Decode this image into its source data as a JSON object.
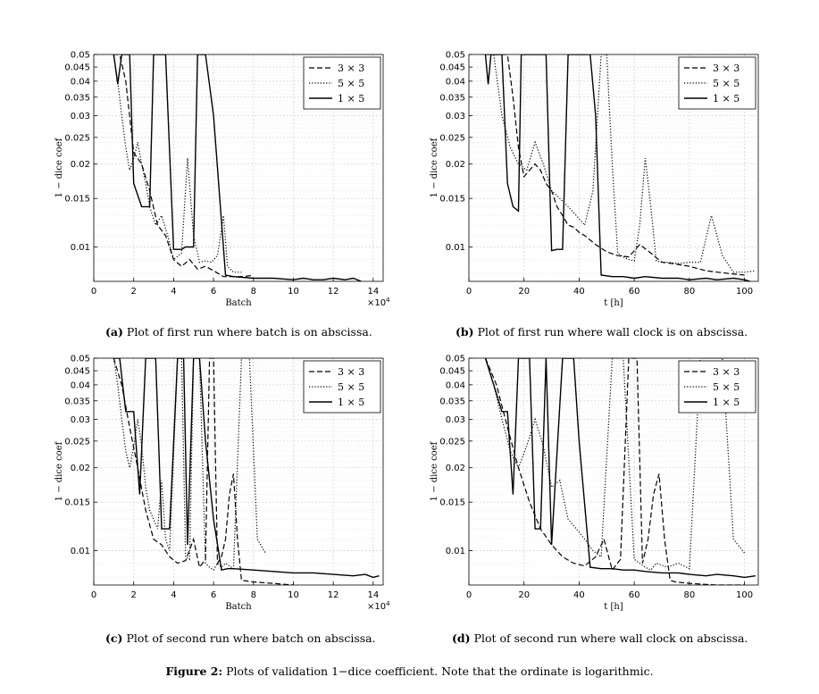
{
  "figure_caption": {
    "label": "Figure 2:",
    "text": "Plots of validation 1−dice coefficient. Note that the ordinate is logarithmic."
  },
  "panels": [
    {
      "caption_label": "(a)",
      "caption_text": "Plot of first run where batch is on abscissa."
    },
    {
      "caption_label": "(b)",
      "caption_text": "Plot of first run where wall clock is on abscissa."
    },
    {
      "caption_label": "(c)",
      "caption_text": "Plot of second run where batch on abscissa."
    },
    {
      "caption_label": "(d)",
      "caption_text": "Plot of second run where wall clock on abscissa."
    }
  ],
  "chart_data": [
    {
      "type": "line",
      "title": "",
      "xlabel": "Batch",
      "ylabel": "1 − dice coef",
      "x_multiplier_label": "×10",
      "x_multiplier_exp": "4",
      "xlim": [
        0,
        14.5
      ],
      "xticks": [
        0,
        2,
        4,
        6,
        8,
        10,
        12,
        14
      ],
      "xtick_labels": [
        "0",
        "2",
        "4",
        "6",
        "8",
        "10",
        "12",
        "14"
      ],
      "yscale": "log",
      "ylim": [
        0.0075,
        0.05
      ],
      "yticks": [
        0.01,
        0.015,
        0.02,
        0.025,
        0.03,
        0.035,
        0.04,
        0.045,
        0.05
      ],
      "ytick_labels": [
        "0.01",
        "0.015",
        "0.02",
        "0.025",
        "0.03",
        "0.035",
        "0.04",
        "0.045",
        "0.05"
      ],
      "grid": true,
      "legend_position": "top-right",
      "series": [
        {
          "name": "3 × 3",
          "style": "dashed",
          "x": [
            1.0,
            1.3,
            1.6,
            2.0,
            2.4,
            2.8,
            3.2,
            3.6,
            4.0,
            4.4,
            4.8,
            5.2,
            5.6,
            6.0,
            6.5,
            7.0,
            7.5,
            8.0
          ],
          "y": [
            0.05,
            0.05,
            0.04,
            0.022,
            0.02,
            0.016,
            0.012,
            0.011,
            0.009,
            0.0085,
            0.009,
            0.0083,
            0.0085,
            0.0082,
            0.0078,
            0.0078,
            0.0078,
            0.0079
          ]
        },
        {
          "name": "5 × 5",
          "style": "dotted",
          "x": [
            1.0,
            1.2,
            1.4,
            1.6,
            1.8,
            2.0,
            2.2,
            2.4,
            2.6,
            2.8,
            3.1,
            3.4,
            3.7,
            4.0,
            4.4,
            4.7,
            5.0,
            5.3,
            5.6,
            5.9,
            6.2,
            6.5,
            6.7,
            7.0,
            7.4
          ],
          "y": [
            0.05,
            0.04,
            0.03,
            0.023,
            0.019,
            0.021,
            0.024,
            0.02,
            0.017,
            0.014,
            0.012,
            0.013,
            0.011,
            0.009,
            0.0095,
            0.021,
            0.011,
            0.0088,
            0.0089,
            0.0088,
            0.0093,
            0.013,
            0.0085,
            0.0081,
            0.0081
          ]
        },
        {
          "name": "1 × 5",
          "style": "solid",
          "x": [
            1.0,
            1.2,
            1.4,
            1.6,
            1.8,
            2.0,
            2.4,
            2.8,
            3.0,
            3.2,
            3.6,
            4.0,
            4.4,
            4.6,
            5.0,
            5.2,
            5.6,
            6.0,
            6.6,
            7.0,
            8.0,
            9.0,
            10.0,
            10.5,
            11.0,
            11.5,
            12.0,
            12.6,
            13.0,
            13.4
          ],
          "y": [
            0.05,
            0.039,
            0.05,
            0.05,
            0.05,
            0.017,
            0.014,
            0.014,
            0.05,
            0.05,
            0.05,
            0.0098,
            0.0098,
            0.01,
            0.01,
            0.05,
            0.05,
            0.03,
            0.0079,
            0.0078,
            0.0077,
            0.0077,
            0.0076,
            0.0077,
            0.0076,
            0.0076,
            0.0077,
            0.0076,
            0.0077,
            0.0075
          ]
        }
      ]
    },
    {
      "type": "line",
      "title": "",
      "xlabel": "t [h]",
      "ylabel": "1 − dice coef",
      "xlim": [
        0,
        105
      ],
      "xticks": [
        0,
        20,
        40,
        60,
        80,
        100
      ],
      "xtick_labels": [
        "0",
        "20",
        "40",
        "60",
        "80",
        "100"
      ],
      "yscale": "log",
      "ylim": [
        0.0075,
        0.05
      ],
      "yticks": [
        0.01,
        0.015,
        0.02,
        0.025,
        0.03,
        0.035,
        0.04,
        0.045,
        0.05
      ],
      "ytick_labels": [
        "0.01",
        "0.015",
        "0.02",
        "0.025",
        "0.03",
        "0.035",
        "0.04",
        "0.045",
        "0.05"
      ],
      "grid": true,
      "legend_position": "top-right",
      "series": [
        {
          "name": "3 × 3",
          "style": "dashed",
          "x": [
            6,
            8,
            10,
            12,
            14,
            16,
            18,
            20,
            22,
            24,
            26,
            28,
            30,
            32,
            34,
            36,
            38,
            40,
            42,
            46,
            50,
            54,
            58,
            62,
            66,
            70,
            74,
            80,
            86,
            90,
            95,
            100
          ],
          "y": [
            0.05,
            0.05,
            0.05,
            0.05,
            0.05,
            0.035,
            0.023,
            0.018,
            0.019,
            0.02,
            0.019,
            0.017,
            0.016,
            0.014,
            0.013,
            0.012,
            0.0118,
            0.0113,
            0.011,
            0.0102,
            0.0096,
            0.0093,
            0.0092,
            0.0102,
            0.0095,
            0.0088,
            0.0087,
            0.0085,
            0.0082,
            0.0081,
            0.008,
            0.0079
          ]
        },
        {
          "name": "5 × 5",
          "style": "dotted",
          "x": [
            6,
            9,
            12,
            15,
            18,
            21,
            24,
            27,
            30,
            33,
            36,
            39,
            42,
            45,
            48,
            50,
            52,
            54,
            56,
            58,
            60,
            62,
            64,
            66,
            68,
            70,
            72,
            76,
            80,
            84,
            88,
            92,
            96,
            100,
            104
          ],
          "y": [
            0.05,
            0.05,
            0.03,
            0.023,
            0.02,
            0.019,
            0.024,
            0.02,
            0.016,
            0.015,
            0.014,
            0.013,
            0.012,
            0.016,
            0.05,
            0.05,
            0.02,
            0.0095,
            0.0092,
            0.009,
            0.0089,
            0.012,
            0.021,
            0.014,
            0.0089,
            0.0088,
            0.0088,
            0.0087,
            0.0088,
            0.0088,
            0.013,
            0.0093,
            0.0081,
            0.0081,
            0.0082
          ]
        },
        {
          "name": "1 × 5",
          "style": "solid",
          "x": [
            6,
            7,
            8,
            10,
            12,
            14,
            16,
            18,
            19,
            20,
            22,
            24,
            26,
            28,
            30,
            32,
            34,
            36,
            38,
            40,
            42,
            44,
            46,
            48,
            52,
            56,
            60,
            64,
            70,
            76,
            80,
            86,
            90,
            96,
            100,
            102
          ],
          "y": [
            0.05,
            0.039,
            0.05,
            0.05,
            0.05,
            0.017,
            0.014,
            0.0135,
            0.05,
            0.05,
            0.05,
            0.05,
            0.05,
            0.05,
            0.0097,
            0.0098,
            0.0098,
            0.05,
            0.05,
            0.05,
            0.05,
            0.05,
            0.03,
            0.0079,
            0.0078,
            0.0078,
            0.0077,
            0.0078,
            0.0077,
            0.0077,
            0.0076,
            0.0077,
            0.0076,
            0.0077,
            0.0076,
            0.0075
          ]
        }
      ]
    },
    {
      "type": "line",
      "title": "",
      "xlabel": "Batch",
      "ylabel": "1 − dice coef",
      "x_multiplier_label": "×10",
      "x_multiplier_exp": "4",
      "xlim": [
        0,
        14.5
      ],
      "xticks": [
        0,
        2,
        4,
        6,
        8,
        10,
        12,
        14
      ],
      "xtick_labels": [
        "0",
        "2",
        "4",
        "6",
        "8",
        "10",
        "12",
        "14"
      ],
      "yscale": "log",
      "ylim": [
        0.0075,
        0.05
      ],
      "yticks": [
        0.01,
        0.015,
        0.02,
        0.025,
        0.03,
        0.035,
        0.04,
        0.045,
        0.05
      ],
      "ytick_labels": [
        "0.01",
        "0.015",
        "0.02",
        "0.025",
        "0.03",
        "0.035",
        "0.04",
        "0.045",
        "0.05"
      ],
      "grid": true,
      "legend_position": "top-right",
      "series": [
        {
          "name": "3 × 3",
          "style": "dashed",
          "x": [
            1.0,
            1.4,
            1.8,
            2.2,
            2.6,
            3.0,
            3.4,
            3.8,
            4.2,
            4.6,
            5.0,
            5.3,
            5.6,
            5.8,
            6.0,
            6.2,
            6.4,
            6.6,
            6.8,
            7.0,
            7.2,
            7.4,
            8.0,
            9.0,
            10.0
          ],
          "y": [
            0.05,
            0.04,
            0.028,
            0.02,
            0.014,
            0.011,
            0.0105,
            0.0095,
            0.009,
            0.0092,
            0.011,
            0.0087,
            0.0093,
            0.05,
            0.05,
            0.009,
            0.0095,
            0.011,
            0.016,
            0.019,
            0.011,
            0.0078,
            0.0077,
            0.0076,
            0.0075
          ]
        },
        {
          "name": "5 × 5",
          "style": "dotted",
          "x": [
            1.0,
            1.2,
            1.4,
            1.6,
            1.8,
            2.0,
            2.2,
            2.4,
            2.6,
            2.8,
            3.0,
            3.2,
            3.4,
            3.6,
            3.8,
            4.2,
            4.4,
            4.6,
            4.8,
            5.0,
            5.3,
            5.6,
            5.8,
            6.0,
            6.2,
            6.4,
            6.6,
            7.0,
            7.4,
            7.8,
            8.2,
            8.6
          ],
          "y": [
            0.05,
            0.04,
            0.03,
            0.023,
            0.02,
            0.024,
            0.03,
            0.024,
            0.017,
            0.014,
            0.013,
            0.012,
            0.018,
            0.011,
            0.01,
            0.05,
            0.05,
            0.0095,
            0.0093,
            0.05,
            0.05,
            0.009,
            0.0087,
            0.0085,
            0.009,
            0.0087,
            0.009,
            0.0086,
            0.05,
            0.05,
            0.011,
            0.0098
          ]
        },
        {
          "name": "1 × 5",
          "style": "solid",
          "x": [
            1.0,
            1.3,
            1.6,
            2.0,
            2.3,
            2.6,
            2.9,
            3.1,
            3.4,
            3.8,
            4.2,
            4.5,
            4.7,
            5.0,
            5.3,
            5.6,
            6.0,
            6.4,
            6.7,
            7.0,
            8.0,
            9.0,
            10.0,
            11.0,
            12.0,
            13.0,
            13.6,
            14.0,
            14.3
          ],
          "y": [
            0.05,
            0.05,
            0.032,
            0.032,
            0.016,
            0.05,
            0.05,
            0.05,
            0.012,
            0.012,
            0.05,
            0.05,
            0.0105,
            0.05,
            0.05,
            0.025,
            0.013,
            0.0085,
            0.0086,
            0.0086,
            0.0085,
            0.0084,
            0.0083,
            0.0083,
            0.0082,
            0.0081,
            0.0082,
            0.008,
            0.0081
          ]
        }
      ]
    },
    {
      "type": "line",
      "title": "",
      "xlabel": "t [h]",
      "ylabel": "1 − dice coef",
      "xlim": [
        0,
        105
      ],
      "xticks": [
        0,
        20,
        40,
        60,
        80,
        100
      ],
      "xtick_labels": [
        "0",
        "20",
        "40",
        "60",
        "80",
        "100"
      ],
      "yscale": "log",
      "ylim": [
        0.0075,
        0.05
      ],
      "yticks": [
        0.01,
        0.015,
        0.02,
        0.025,
        0.03,
        0.035,
        0.04,
        0.045,
        0.05
      ],
      "ytick_labels": [
        "0.01",
        "0.015",
        "0.02",
        "0.025",
        "0.03",
        "0.035",
        "0.04",
        "0.045",
        "0.05"
      ],
      "grid": true,
      "legend_position": "top-right",
      "series": [
        {
          "name": "3 × 3",
          "style": "dashed",
          "x": [
            6,
            10,
            14,
            18,
            22,
            26,
            30,
            34,
            38,
            42,
            46,
            49,
            52,
            55,
            58,
            61,
            63,
            65,
            67,
            69,
            71,
            73,
            75,
            80,
            90,
            100
          ],
          "y": [
            0.05,
            0.04,
            0.028,
            0.02,
            0.015,
            0.012,
            0.0105,
            0.0095,
            0.009,
            0.0088,
            0.0095,
            0.011,
            0.0085,
            0.0093,
            0.05,
            0.05,
            0.009,
            0.011,
            0.016,
            0.019,
            0.011,
            0.0078,
            0.0077,
            0.0076,
            0.0075,
            0.0075
          ]
        },
        {
          "name": "5 × 5",
          "style": "dotted",
          "x": [
            6,
            9,
            12,
            15,
            18,
            21,
            24,
            27,
            30,
            33,
            36,
            39,
            42,
            45,
            48,
            52,
            56,
            60,
            64,
            66,
            68,
            72,
            76,
            80,
            84,
            88,
            92,
            96,
            100
          ],
          "y": [
            0.05,
            0.04,
            0.03,
            0.023,
            0.02,
            0.024,
            0.03,
            0.024,
            0.017,
            0.018,
            0.013,
            0.012,
            0.011,
            0.01,
            0.0095,
            0.05,
            0.05,
            0.0093,
            0.0087,
            0.0085,
            0.009,
            0.0087,
            0.009,
            0.0086,
            0.05,
            0.05,
            0.05,
            0.011,
            0.0098
          ]
        },
        {
          "name": "1 × 5",
          "style": "solid",
          "x": [
            6,
            9,
            12,
            14,
            16,
            18,
            20,
            22,
            24,
            26,
            28,
            30,
            34,
            38,
            40,
            44,
            48,
            52,
            56,
            60,
            64,
            70,
            76,
            80,
            86,
            90,
            96,
            100,
            104
          ],
          "y": [
            0.05,
            0.04,
            0.032,
            0.032,
            0.016,
            0.05,
            0.05,
            0.05,
            0.012,
            0.012,
            0.05,
            0.0105,
            0.05,
            0.05,
            0.025,
            0.0087,
            0.0086,
            0.0086,
            0.0085,
            0.0085,
            0.0084,
            0.0083,
            0.0083,
            0.0082,
            0.0081,
            0.0082,
            0.0081,
            0.008,
            0.0081
          ]
        }
      ]
    }
  ]
}
